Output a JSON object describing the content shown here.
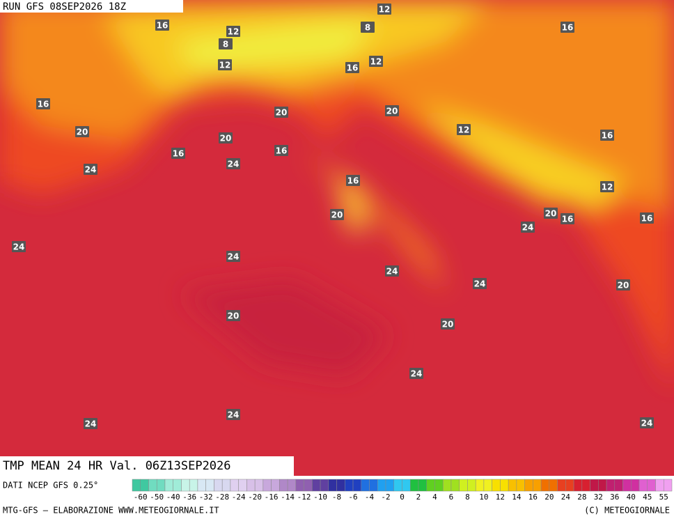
{
  "header": {
    "title": "RUN GFS 08SEP2026 18Z"
  },
  "contour_labels": [
    "16",
    "12",
    "8",
    "12",
    "12",
    "8",
    "16",
    "16",
    "12",
    "16",
    "20",
    "20",
    "20",
    "12",
    "16",
    "20",
    "16",
    "16",
    "24",
    "24",
    "16",
    "12",
    "20",
    "16",
    "16",
    "20",
    "24",
    "24",
    "24",
    "24",
    "24",
    "20",
    "20",
    "20",
    "24",
    "24",
    "24",
    "24"
  ],
  "footer": {
    "valid": "TMP MEAN 24 HR Val. 06Z13SEP2026",
    "source": "DATI NCEP GFS 0.25°",
    "credits": "MTG-GFS – ELABORAZIONE WWW.METEOGIORNALE.IT",
    "copyright": "(C) METEOGIORNALE"
  },
  "colorbar": {
    "ticks": [
      "-60",
      "-50",
      "-40",
      "-36",
      "-32",
      "-28",
      "-24",
      "-20",
      "-16",
      "-14",
      "-12",
      "-10",
      "-8",
      "-6",
      "-4",
      "-2",
      "0",
      "2",
      "4",
      "6",
      "8",
      "10",
      "12",
      "14",
      "16",
      "20",
      "24",
      "28",
      "32",
      "36",
      "40",
      "45",
      "55"
    ],
    "colors": [
      "#40c8a0",
      "#70dcc0",
      "#a0ecd8",
      "#c8f4e8",
      "#d8e8f4",
      "#d8d8f0",
      "#e0d0f0",
      "#d8c0e8",
      "#c8a8dc",
      "#b088c8",
      "#9060b0",
      "#6040a0",
      "#3030a0",
      "#2040c0",
      "#2070e0",
      "#20a0f0",
      "#30c8f0",
      "#20c040",
      "#60d020",
      "#a0e020",
      "#d0f020",
      "#f0f020",
      "#f8e000",
      "#f8c000",
      "#f8a000",
      "#f07000",
      "#e84020",
      "#d82030",
      "#c01848",
      "#c02070",
      "#d030a0",
      "#e060d0",
      "#f0a0f0"
    ]
  }
}
